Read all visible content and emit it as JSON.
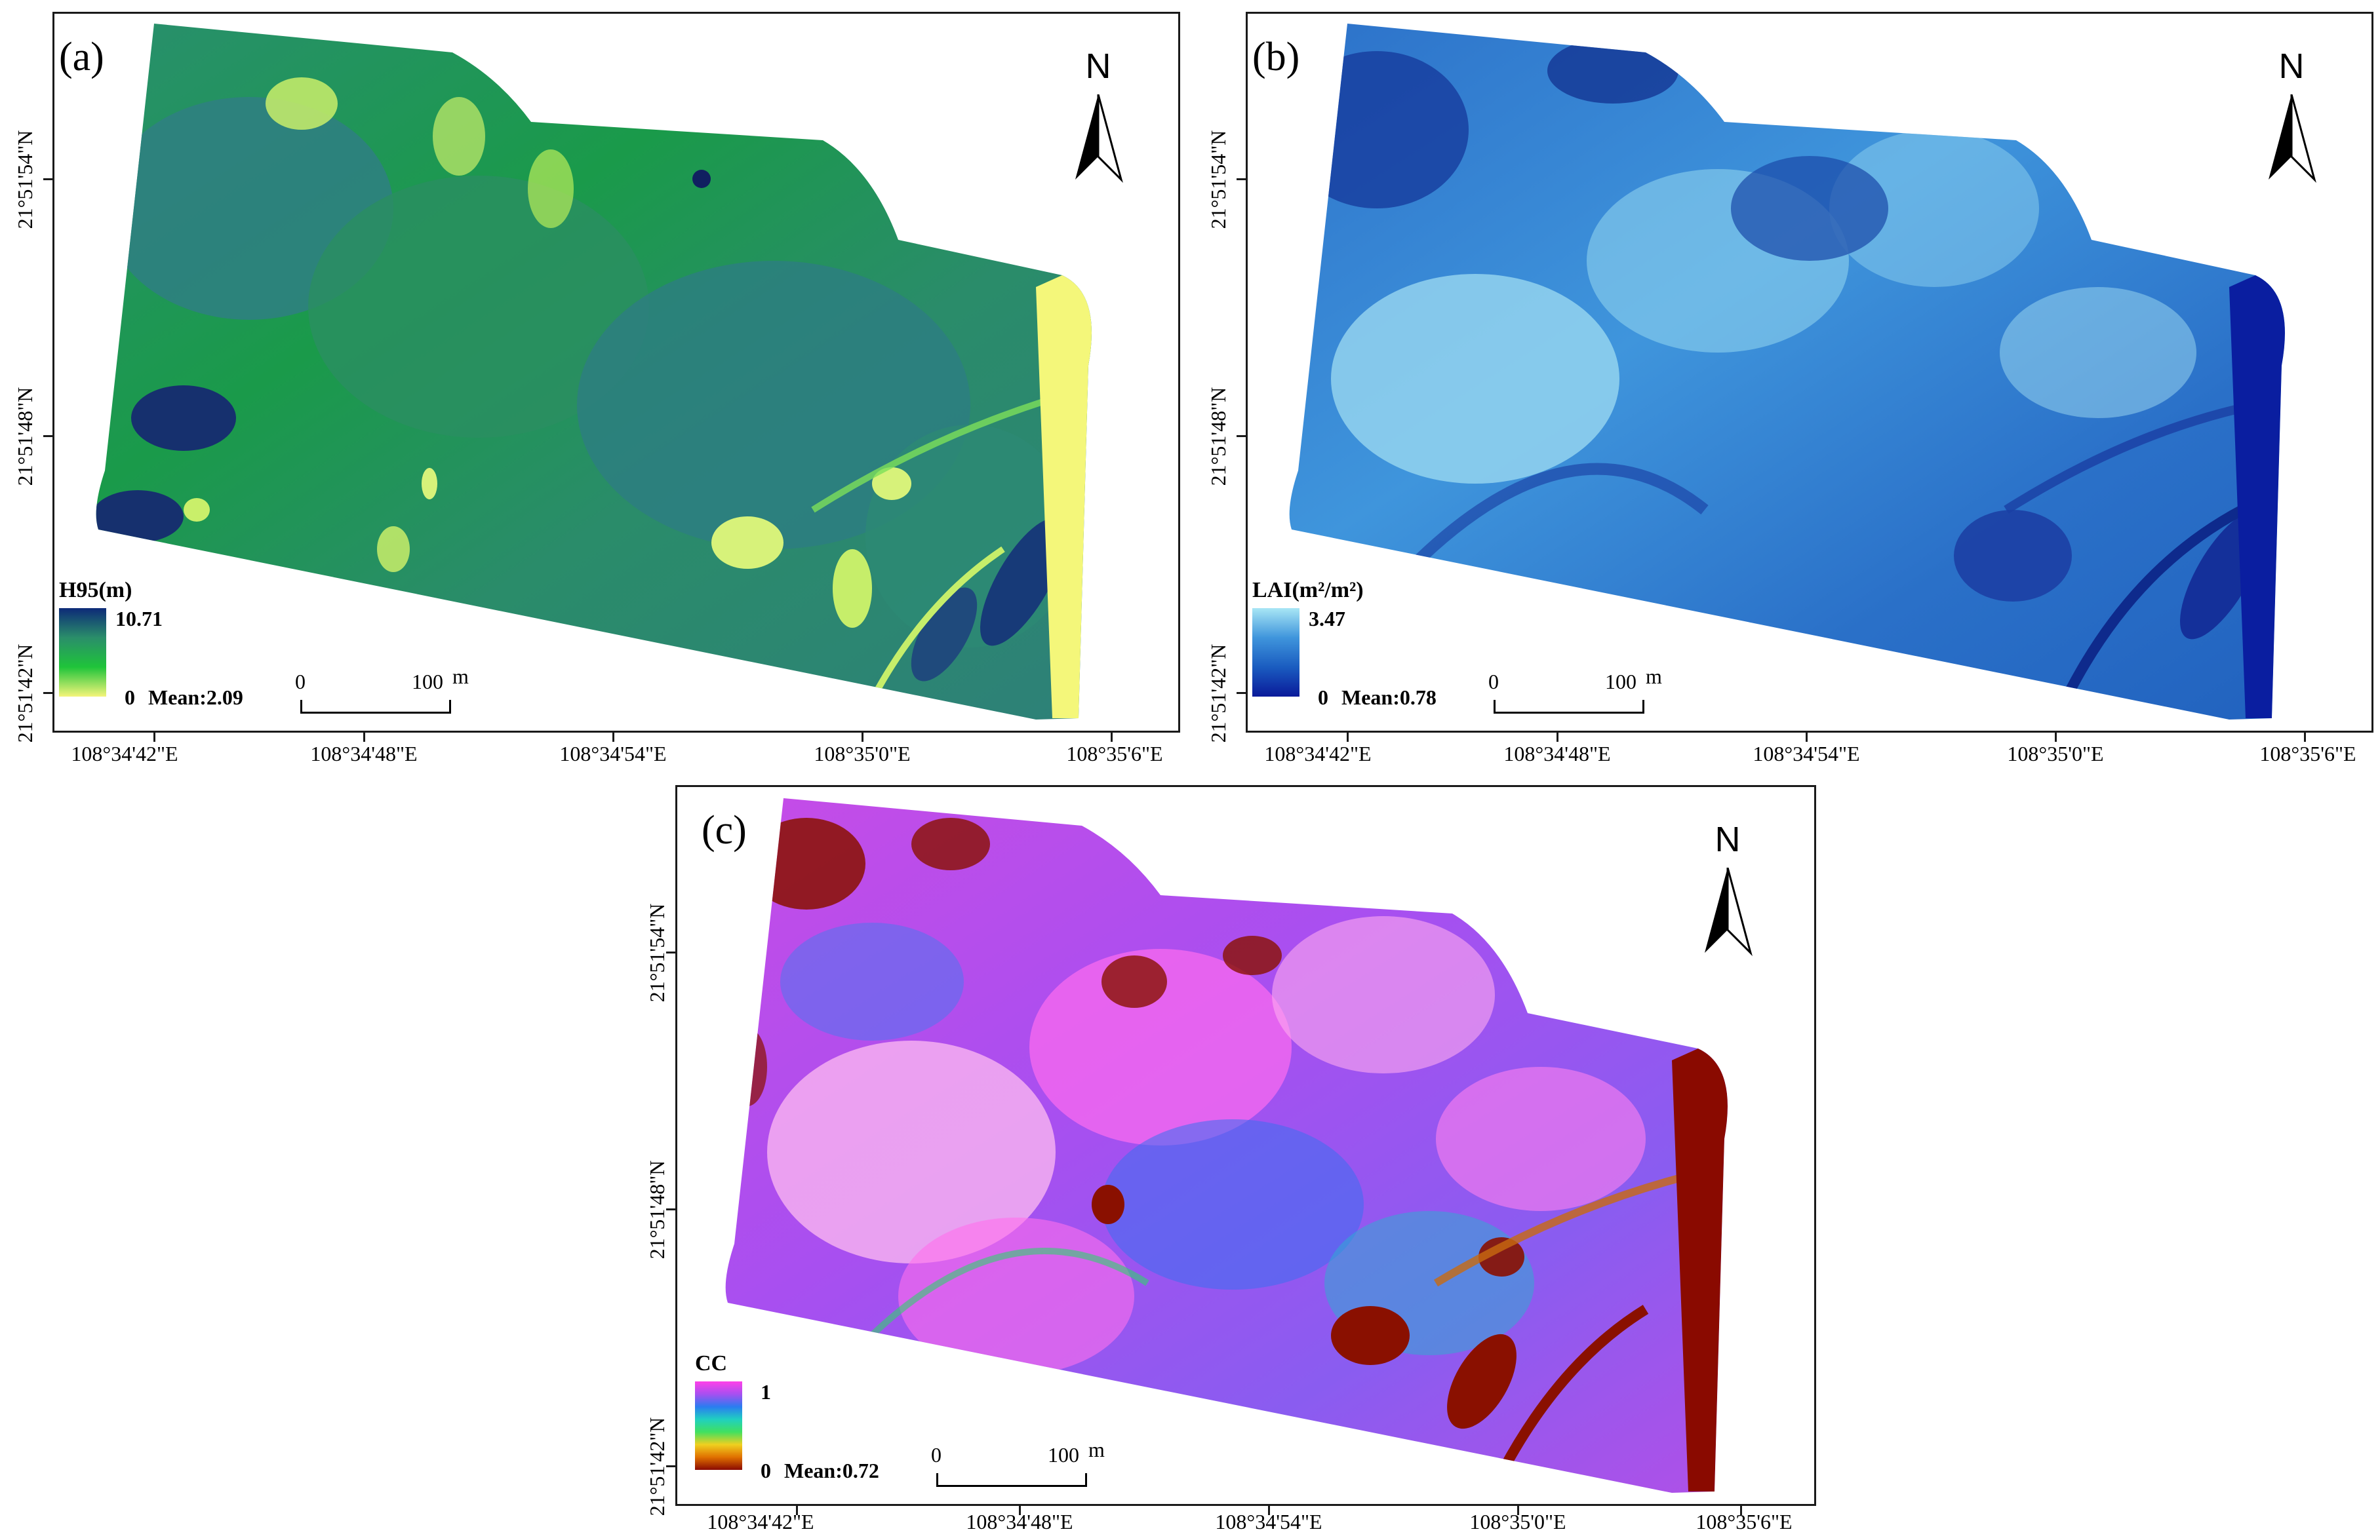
{
  "figure": {
    "panels": [
      {
        "id": "a",
        "label": "(a)",
        "north_label": "N",
        "legend": {
          "title": "H95(m)",
          "max": "10.71",
          "min": "0",
          "mean": "Mean:2.09"
        },
        "scalebar": {
          "zero": "0",
          "hundred": "100",
          "unit": "m"
        },
        "x_ticks": [
          "108°34'42\"E",
          "108°34'48\"E",
          "108°34'54\"E",
          "108°35'0\"E",
          "108°35'6\"E"
        ],
        "y_ticks": [
          "21°51'54\"N",
          "21°51'48\"N",
          "21°51'42\"N"
        ],
        "colors": {
          "high": "#0d2a78",
          "mid": "#1fc43a",
          "low": "#f4f57a",
          "base": "#2e8f6a"
        }
      },
      {
        "id": "b",
        "label": "(b)",
        "north_label": "N",
        "legend": {
          "title": "LAI(m²/m²)",
          "max": "3.47",
          "min": "0",
          "mean": "Mean:0.78"
        },
        "scalebar": {
          "zero": "0",
          "hundred": "100",
          "unit": "m"
        },
        "x_ticks": [
          "108°34'42\"E",
          "108°34'48\"E",
          "108°34'54\"E",
          "108°35'0\"E",
          "108°35'6\"E"
        ],
        "y_ticks": [
          "21°51'54\"N",
          "21°51'48\"N",
          "21°51'42\"N"
        ],
        "colors": {
          "high": "#a8e6f5",
          "mid": "#2f8fd8",
          "low": "#0a1a9a",
          "base": "#2a74cc"
        }
      },
      {
        "id": "c",
        "label": "(c)",
        "north_label": "N",
        "legend": {
          "title": "CC",
          "max": "1",
          "min": "0",
          "mean": "Mean:0.72"
        },
        "scalebar": {
          "zero": "0",
          "hundred": "100",
          "unit": "m"
        },
        "x_ticks": [
          "108°34'42\"E",
          "108°34'48\"E",
          "108°34'54\"E",
          "108°35'0\"E",
          "108°35'6\"E"
        ],
        "y_ticks": [
          "21°51'54\"N",
          "21°51'48\"N",
          "21°51'42\"N"
        ],
        "colors": {
          "high": "#ff40e8",
          "mid": "#2a7cf0",
          "low": "#8a0a00",
          "base": "#b055e8"
        }
      }
    ]
  }
}
